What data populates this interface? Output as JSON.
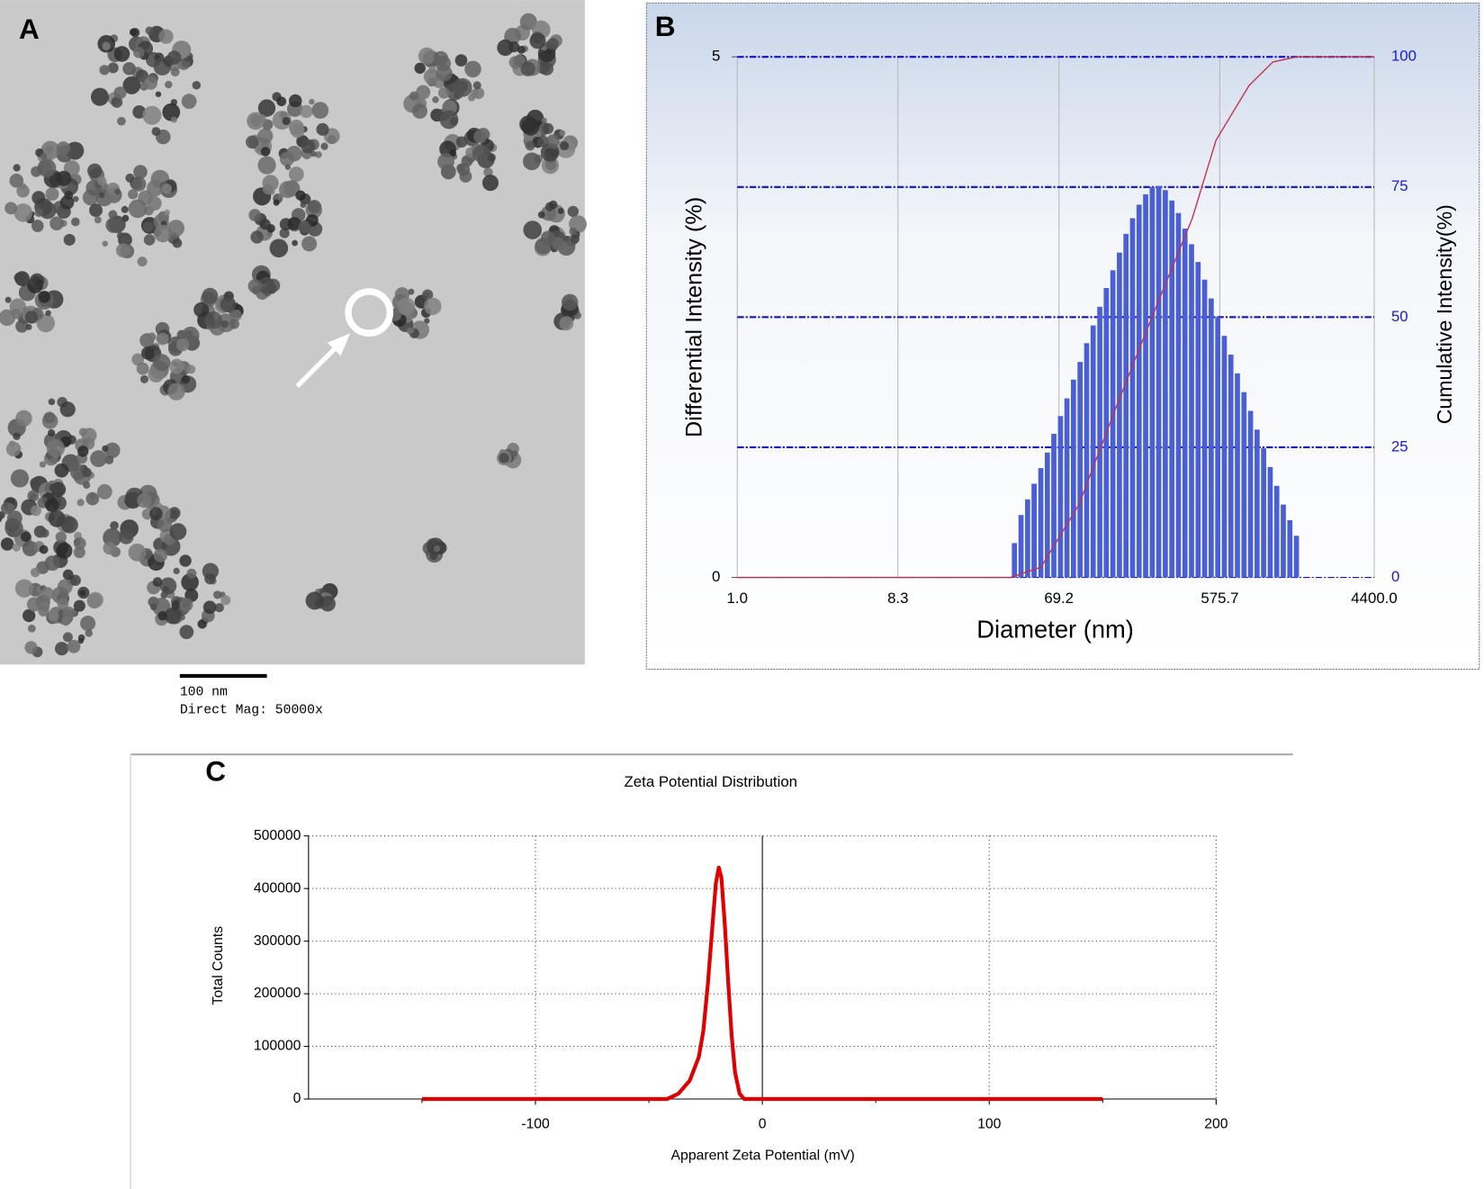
{
  "image_panel": {
    "panel": "A",
    "scale_bar_label": "100 nm",
    "magnification": "Direct Mag: 50000x"
  },
  "chart_data": [
    {
      "type": "bar",
      "panel": "B",
      "x_label": "Diameter (nm)",
      "y_label": "Differential Intensity (%)",
      "y2_label": "Cumulative Intensity(%)",
      "xscale": "log",
      "xlim": [
        1,
        4400
      ],
      "xticks": [
        {
          "value": 1,
          "label": "1.0"
        },
        8.3,
        69.2,
        575.7,
        {
          "value": 4400,
          "label": "4400.0"
        }
      ],
      "ylim": [
        0,
        5
      ],
      "yticks": [
        0,
        5
      ],
      "y2lim": [
        0,
        100
      ],
      "y2ticks": [
        0,
        25,
        50,
        75,
        100
      ],
      "grid": true,
      "x": [
        38.5,
        42.0,
        45.8,
        49.9,
        54.5,
        59.4,
        64.7,
        70.6,
        76.9,
        83.8,
        91.4,
        99.7,
        108.6,
        118.5,
        129.1,
        140.8,
        153.5,
        167.3,
        182.4,
        198.9,
        216.8,
        236.4,
        257.6,
        280.9,
        306.2,
        333.9,
        363.9,
        396.7,
        432.5,
        471.5,
        514.0,
        560.4,
        610.9,
        666.1,
        726.1,
        791.6,
        863.0,
        940.9,
        1025.6,
        1118.2,
        1218.9,
        1328.9,
        1448.8,
        1579.5
      ],
      "series": [
        {
          "color": "#4a5fd6",
          "values": [
            0.33,
            0.6,
            0.75,
            0.9,
            1.05,
            1.2,
            1.38,
            1.55,
            1.72,
            1.9,
            2.07,
            2.25,
            2.42,
            2.6,
            2.78,
            2.95,
            3.12,
            3.3,
            3.45,
            3.58,
            3.68,
            3.75,
            3.76,
            3.72,
            3.62,
            3.5,
            3.35,
            3.2,
            3.03,
            2.86,
            2.68,
            2.5,
            2.32,
            2.14,
            1.96,
            1.78,
            1.6,
            1.42,
            1.24,
            1.06,
            0.88,
            0.7,
            0.55,
            0.4
          ]
        },
        {
          "type": "line",
          "axis": "y2",
          "color": "#c0304a",
          "x": [
            1,
            36.7,
            54.7,
            90,
            148,
            229,
            401,
            548,
            847,
            1156,
            1578,
            4400
          ],
          "values": [
            0,
            0,
            2,
            14,
            33,
            49,
            69,
            84,
            94.5,
            99,
            100,
            100
          ]
        }
      ]
    },
    {
      "type": "line",
      "panel": "C",
      "title": "Zeta Potential Distribution",
      "x_label": "Apparent Zeta Potential (mV)",
      "y_label": "Total Counts",
      "xlim": [
        -200,
        200
      ],
      "xticks": [
        -100,
        0,
        100,
        200
      ],
      "xminorticks": [
        -150,
        -50,
        50,
        150
      ],
      "ylim": [
        0,
        500000
      ],
      "yticks": [
        0,
        100000,
        200000,
        300000,
        400000,
        500000
      ],
      "grid": true,
      "x": [
        -150,
        -42,
        -37,
        -32,
        -28,
        -26,
        -24,
        -22,
        -20.5,
        -19.2,
        -18,
        -16.5,
        -15,
        -13.5,
        -12,
        -10,
        -8,
        150
      ],
      "series": [
        {
          "color": "#e00000",
          "values": [
            0,
            0,
            10000,
            35000,
            80000,
            130000,
            220000,
            330000,
            410000,
            440000,
            420000,
            330000,
            220000,
            120000,
            50000,
            10000,
            0,
            0
          ]
        }
      ]
    }
  ]
}
